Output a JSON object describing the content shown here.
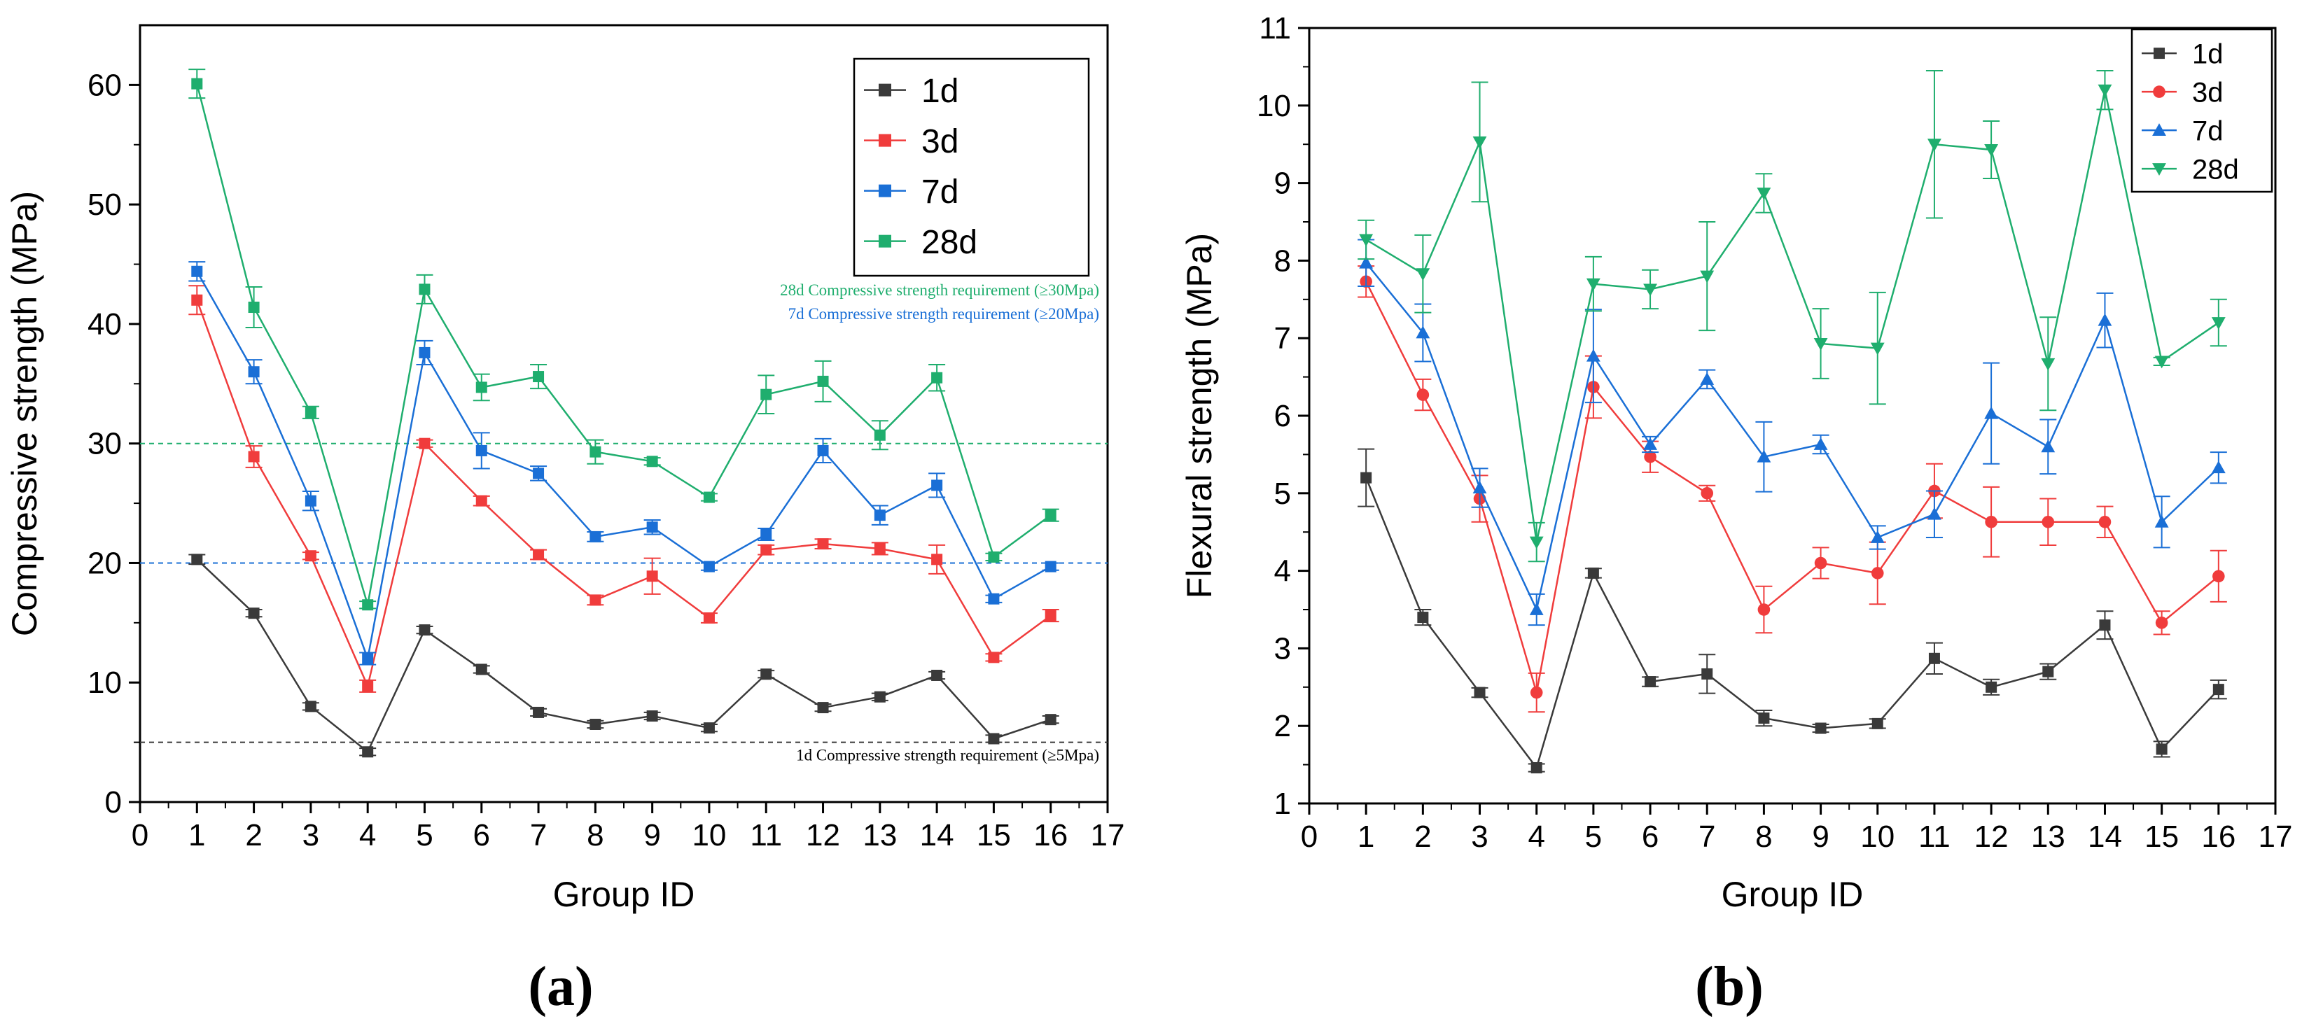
{
  "chart_data": [
    {
      "id": "a",
      "type": "line",
      "panel_label": "(a)",
      "xlabel": "Group ID",
      "ylabel": "Compressive strength (MPa)",
      "xlim": [
        0,
        17
      ],
      "ylim": [
        0,
        65
      ],
      "xticks": [
        0,
        1,
        2,
        3,
        4,
        5,
        6,
        7,
        8,
        9,
        10,
        11,
        12,
        13,
        14,
        15,
        16,
        17
      ],
      "yticks": [
        0,
        10,
        20,
        30,
        40,
        50,
        60
      ],
      "legend_position": "top-right",
      "x": [
        1,
        2,
        3,
        4,
        5,
        6,
        7,
        8,
        9,
        10,
        11,
        12,
        13,
        14,
        15,
        16
      ],
      "series": [
        {
          "name": "1d",
          "color": "#3a3a3a",
          "marker": "square",
          "values": [
            20.3,
            15.8,
            8.0,
            4.2,
            14.4,
            11.1,
            7.5,
            6.5,
            7.2,
            6.2,
            10.7,
            7.9,
            8.8,
            10.6,
            5.3,
            6.9
          ],
          "errors": [
            0.4,
            0.3,
            0.3,
            0.3,
            0.3,
            0.3,
            0.3,
            0.3,
            0.3,
            0.3,
            0.3,
            0.3,
            0.3,
            0.3,
            0.3,
            0.3
          ]
        },
        {
          "name": "3d",
          "color": "#f03c3c",
          "marker": "square",
          "values": [
            42.0,
            28.9,
            20.6,
            9.7,
            30.0,
            25.2,
            20.7,
            16.9,
            18.9,
            15.4,
            21.1,
            21.6,
            21.2,
            20.3,
            12.1,
            15.6
          ],
          "errors": [
            1.2,
            0.9,
            0.3,
            0.5,
            0.3,
            0.4,
            0.4,
            0.4,
            1.5,
            0.4,
            0.4,
            0.4,
            0.5,
            1.2,
            0.3,
            0.5
          ]
        },
        {
          "name": "7d",
          "color": "#1a6fd6",
          "marker": "square",
          "values": [
            44.4,
            36.0,
            25.2,
            12.0,
            37.6,
            29.4,
            27.5,
            22.2,
            23.0,
            19.7,
            22.4,
            29.4,
            24.0,
            26.5,
            17.0,
            19.7
          ],
          "errors": [
            0.8,
            1.0,
            0.8,
            0.5,
            1.0,
            1.5,
            0.6,
            0.4,
            0.6,
            0.3,
            0.5,
            1.0,
            0.8,
            1.0,
            0.3,
            0.3
          ]
        },
        {
          "name": "28d",
          "color": "#1fae6e",
          "marker": "square",
          "values": [
            60.1,
            41.4,
            32.6,
            16.5,
            42.9,
            34.7,
            35.6,
            29.3,
            28.5,
            25.5,
            34.1,
            35.2,
            30.7,
            35.5,
            20.5,
            24.0
          ],
          "errors": [
            1.2,
            1.7,
            0.5,
            0.3,
            1.2,
            1.1,
            1.0,
            1.0,
            0.3,
            0.3,
            1.6,
            1.7,
            1.2,
            1.1,
            0.3,
            0.5
          ]
        }
      ],
      "reference_lines": [
        {
          "y": 30,
          "color": "#1fae6e",
          "label": "28d Compressive strength requirement (≥30Mpa)"
        },
        {
          "y": 20,
          "color": "#1a6fd6",
          "label": "7d Compressive strength requirement (≥20Mpa)"
        },
        {
          "y": 5,
          "color": "#3a3a3a",
          "label": "1d Compressive strength requirement (≥5Mpa)"
        }
      ]
    },
    {
      "id": "b",
      "type": "line",
      "panel_label": "(b)",
      "xlabel": "Group ID",
      "ylabel": "Flexural strength (MPa)",
      "xlim": [
        0,
        17
      ],
      "ylim": [
        1,
        11
      ],
      "xticks": [
        0,
        1,
        2,
        3,
        4,
        5,
        6,
        7,
        8,
        9,
        10,
        11,
        12,
        13,
        14,
        15,
        16,
        17
      ],
      "yticks": [
        1,
        2,
        3,
        4,
        5,
        6,
        7,
        8,
        9,
        10,
        11
      ],
      "legend_position": "top-right",
      "x": [
        1,
        2,
        3,
        4,
        5,
        6,
        7,
        8,
        9,
        10,
        11,
        12,
        13,
        14,
        15,
        16
      ],
      "series": [
        {
          "name": "1d",
          "color": "#3a3a3a",
          "marker": "square",
          "values": [
            5.2,
            3.4,
            2.43,
            1.46,
            3.97,
            2.57,
            2.67,
            2.1,
            1.97,
            2.03,
            2.87,
            2.5,
            2.7,
            3.3,
            1.7,
            2.47
          ],
          "errors": [
            0.37,
            0.1,
            0.06,
            0.05,
            0.06,
            0.06,
            0.25,
            0.1,
            0.05,
            0.06,
            0.2,
            0.1,
            0.1,
            0.18,
            0.1,
            0.12
          ]
        },
        {
          "name": "3d",
          "color": "#f03c3c",
          "marker": "circle",
          "values": [
            7.73,
            6.27,
            4.93,
            2.43,
            6.37,
            5.47,
            5.0,
            3.5,
            4.1,
            3.97,
            5.03,
            4.63,
            4.63,
            4.63,
            3.33,
            3.93
          ],
          "errors": [
            0.2,
            0.2,
            0.3,
            0.25,
            0.4,
            0.2,
            0.1,
            0.3,
            0.2,
            0.4,
            0.35,
            0.45,
            0.3,
            0.2,
            0.15,
            0.33
          ]
        },
        {
          "name": "7d",
          "color": "#1a6fd6",
          "marker": "triangle-up",
          "values": [
            7.97,
            7.07,
            5.07,
            3.5,
            6.77,
            5.63,
            6.47,
            5.47,
            5.63,
            4.43,
            4.73,
            6.03,
            5.6,
            7.23,
            4.63,
            5.33
          ],
          "errors": [
            0.3,
            0.37,
            0.25,
            0.2,
            0.6,
            0.1,
            0.12,
            0.45,
            0.12,
            0.15,
            0.3,
            0.65,
            0.35,
            0.35,
            0.33,
            0.2
          ]
        },
        {
          "name": "28d",
          "color": "#1fae6e",
          "marker": "triangle-down",
          "values": [
            8.27,
            7.83,
            9.53,
            4.37,
            7.7,
            7.63,
            7.8,
            8.87,
            6.93,
            6.87,
            9.5,
            9.43,
            6.67,
            10.2,
            6.7,
            7.2
          ],
          "errors": [
            0.25,
            0.5,
            0.77,
            0.25,
            0.35,
            0.25,
            0.7,
            0.25,
            0.45,
            0.72,
            0.95,
            0.37,
            0.6,
            0.25,
            0.05,
            0.3
          ]
        }
      ]
    }
  ]
}
